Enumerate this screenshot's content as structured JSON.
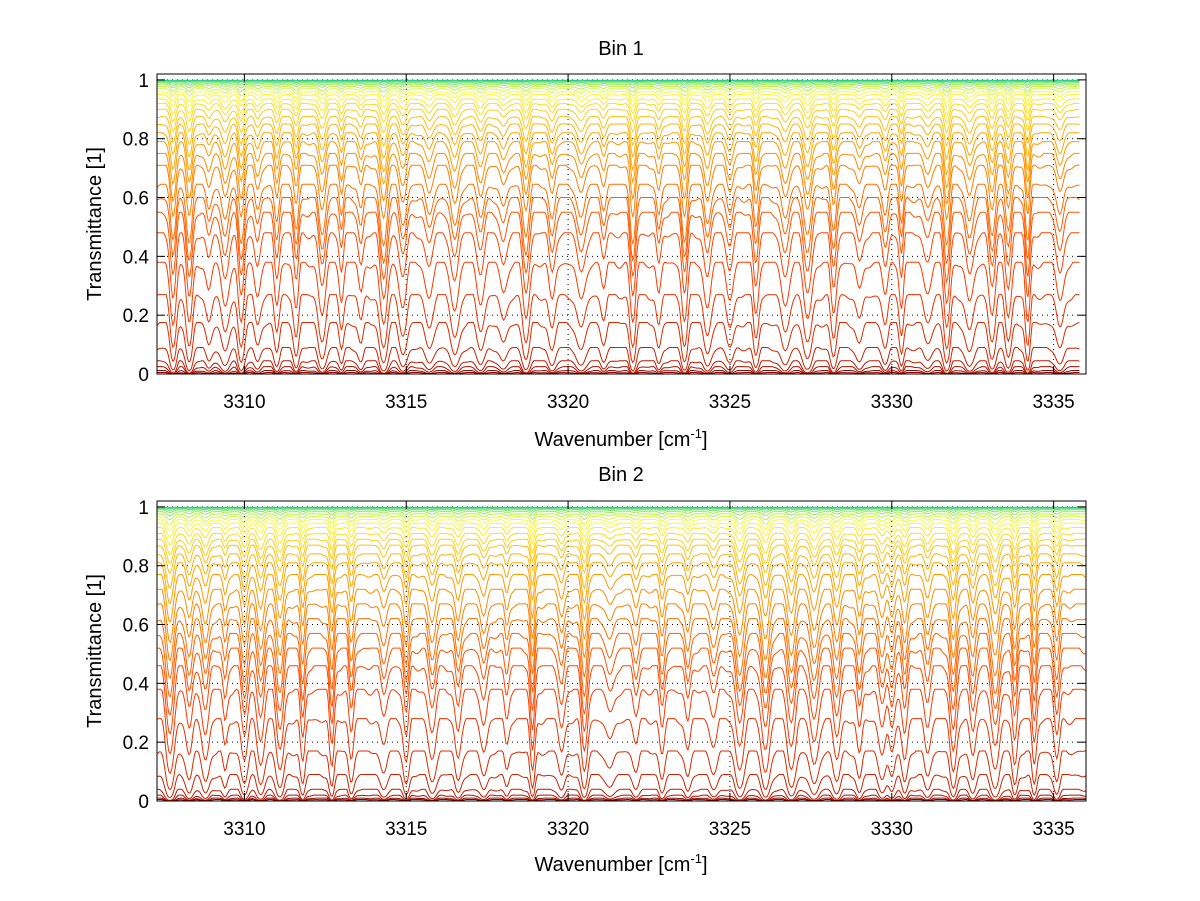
{
  "chart_data": [
    {
      "type": "line",
      "title": "Bin 1",
      "xlabel": "Wavenumber [cm",
      "xlabel_sup": "-1",
      "xlabel_tail": "]",
      "ylabel": "Transmittance [1]",
      "xlim": [
        3307.3,
        3336.0
      ],
      "ylim": [
        0,
        1.02
      ],
      "data_x_end": 3335.8,
      "grid": "dotted",
      "xticks": [
        3310,
        3315,
        3320,
        3325,
        3330,
        3335
      ],
      "xtick_labels": [
        "3310",
        "3315",
        "3320",
        "3325",
        "3330",
        "3335"
      ],
      "yticks": [
        0,
        0.2,
        0.4,
        0.6,
        0.8,
        1
      ],
      "ytick_labels": [
        "0",
        "0.2",
        "0.4",
        "0.6",
        "0.8",
        "1"
      ],
      "series_levels": [
        0.005,
        0.012,
        0.025,
        0.045,
        0.09,
        0.175,
        0.27,
        0.38,
        0.48,
        0.55,
        0.6,
        0.645,
        0.71,
        0.75,
        0.79,
        0.82,
        0.85,
        0.875,
        0.9,
        0.92,
        0.935,
        0.95,
        0.96,
        0.97,
        0.978,
        0.985,
        0.99,
        0.994,
        0.997,
        0.999
      ],
      "absorption_lines": [
        3307.8,
        3308.3,
        3308.9,
        3309.4,
        3309.9,
        3310.4,
        3311.0,
        3311.6,
        3312.4,
        3313.0,
        3313.6,
        3314.3,
        3314.9,
        3315.7,
        3316.5,
        3317.3,
        3318.0,
        3318.7,
        3319.5,
        3320.4,
        3321.1,
        3322.0,
        3322.8,
        3323.6,
        3324.3,
        3325.0,
        3325.8,
        3326.7,
        3327.4,
        3328.2,
        3329.0,
        3329.8,
        3330.3,
        3331.1,
        3331.7,
        3332.4,
        3333.1,
        3333.6,
        3334.2,
        3335.2
      ],
      "colors": [
        "#8b0000",
        "#ff3b00",
        "#ffa000",
        "#ffff33",
        "#22cc88"
      ]
    },
    {
      "type": "line",
      "title": "Bin 2",
      "xlabel": "Wavenumber [cm",
      "xlabel_sup": "-1",
      "xlabel_tail": "]",
      "ylabel": "Transmittance [1]",
      "xlim": [
        3307.3,
        3336.0
      ],
      "ylim": [
        0,
        1.02
      ],
      "data_x_end": 3336.0,
      "grid": "dotted",
      "xticks": [
        3310,
        3315,
        3320,
        3325,
        3330,
        3335
      ],
      "xtick_labels": [
        "3310",
        "3315",
        "3320",
        "3325",
        "3330",
        "3335"
      ],
      "yticks": [
        0,
        0.2,
        0.4,
        0.6,
        0.8,
        1
      ],
      "ytick_labels": [
        "0",
        "0.2",
        "0.4",
        "0.6",
        "0.8",
        "1"
      ],
      "series_levels": [
        0.005,
        0.01,
        0.02,
        0.04,
        0.09,
        0.17,
        0.28,
        0.38,
        0.46,
        0.52,
        0.57,
        0.62,
        0.67,
        0.72,
        0.77,
        0.81,
        0.84,
        0.87,
        0.89,
        0.91,
        0.93,
        0.945,
        0.957,
        0.967,
        0.976,
        0.984,
        0.99,
        0.994,
        0.997,
        0.999
      ],
      "absorption_lines": [
        3307.7,
        3308.3,
        3308.8,
        3309.4,
        3310.0,
        3310.5,
        3311.1,
        3311.8,
        3312.7,
        3313.3,
        3314.3,
        3315.0,
        3315.8,
        3316.6,
        3317.4,
        3318.1,
        3318.9,
        3319.8,
        3320.5,
        3321.3,
        3322.1,
        3322.9,
        3323.7,
        3324.5,
        3325.3,
        3326.1,
        3326.9,
        3327.6,
        3328.3,
        3329.0,
        3329.7,
        3330.0,
        3330.4,
        3331.1,
        3331.9,
        3332.5,
        3333.2,
        3333.8,
        3334.4,
        3335.1
      ],
      "colors": [
        "#8b0000",
        "#ff3b00",
        "#ffa000",
        "#ffff33",
        "#22cc88"
      ]
    }
  ]
}
